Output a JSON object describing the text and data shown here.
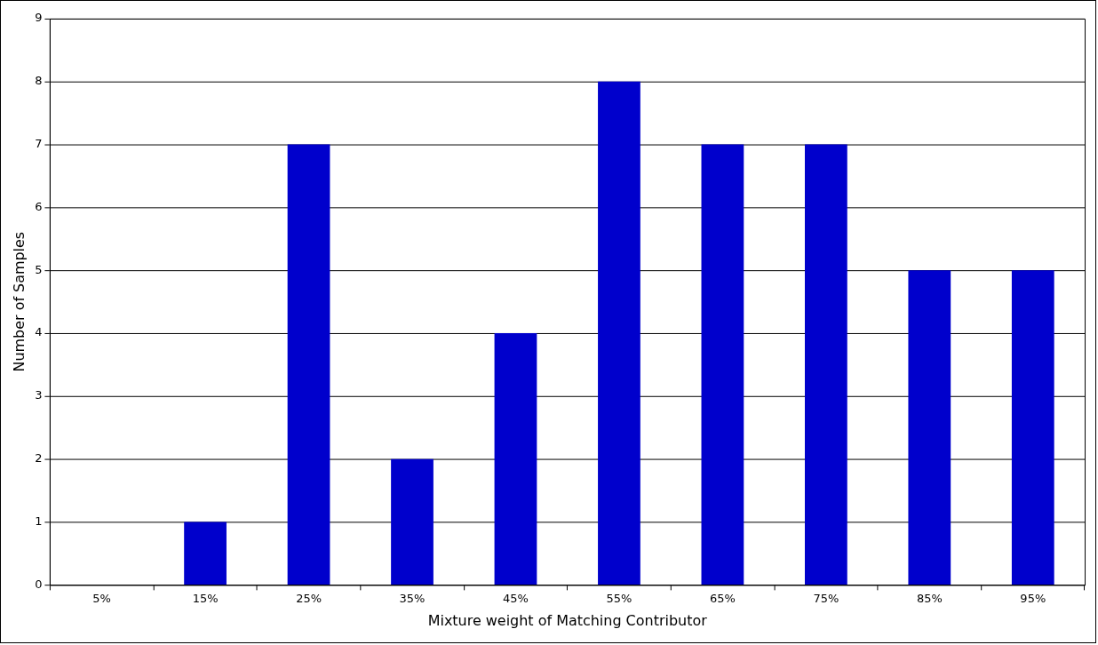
{
  "chart_data": {
    "type": "bar",
    "xlabel": "Mixture weight of Matching Contributor",
    "ylabel": "Number of Samples",
    "categories": [
      "5%",
      "15%",
      "25%",
      "35%",
      "45%",
      "55%",
      "65%",
      "75%",
      "85%",
      "95%"
    ],
    "values": [
      0,
      1,
      7,
      2,
      4,
      8,
      7,
      7,
      5,
      5
    ],
    "color": "#0000cc",
    "ylim": [
      0,
      9
    ],
    "yticks": [
      0,
      1,
      2,
      3,
      4,
      5,
      6,
      7,
      8,
      9
    ],
    "grid": "y",
    "legend": false
  }
}
